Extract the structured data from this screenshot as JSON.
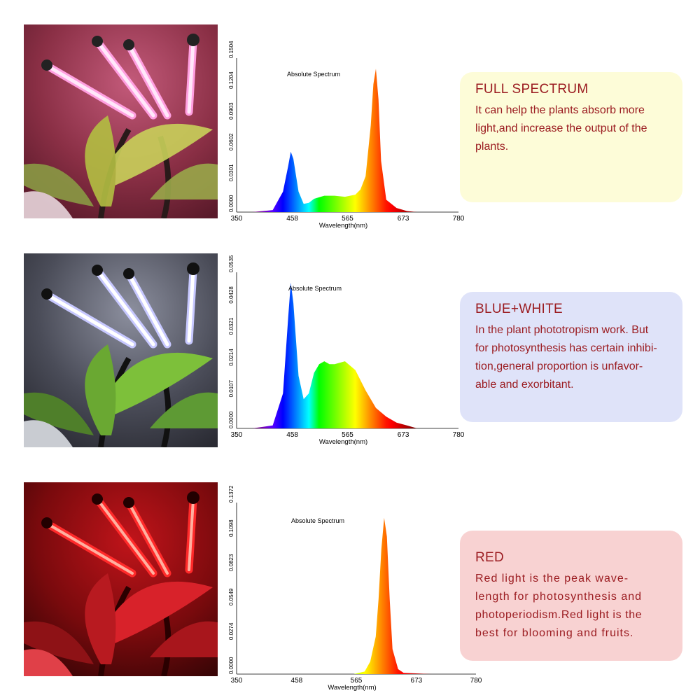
{
  "panels": [
    {
      "id": "full",
      "photo_theme": "pink",
      "card": {
        "title": "FULL SPECTRUM",
        "lines": [
          "It can help the plants absorb more",
          "light,and increase the output of the",
          "plants."
        ],
        "bg": "#fdfcd8"
      },
      "chart_data": {
        "type": "area",
        "title": "Absolute Spectrum",
        "xlabel": "Wavelength(nm)",
        "x_ticks": [
          "350",
          "458",
          "565",
          "673",
          "780"
        ],
        "xlim": [
          350,
          780
        ],
        "y_ticks": [
          "0.0000",
          "0.0301",
          "0.0602",
          "0.0903",
          "0.1204",
          "0.1504"
        ],
        "ylim": [
          0,
          0.1504
        ],
        "x": [
          380,
          420,
          440,
          450,
          455,
          460,
          470,
          480,
          490,
          500,
          520,
          540,
          560,
          580,
          590,
          600,
          610,
          615,
          620,
          625,
          630,
          640,
          660,
          680,
          700
        ],
        "y": [
          0,
          0.002,
          0.02,
          0.045,
          0.059,
          0.052,
          0.02,
          0.008,
          0.009,
          0.013,
          0.016,
          0.016,
          0.015,
          0.017,
          0.022,
          0.035,
          0.085,
          0.125,
          0.14,
          0.11,
          0.05,
          0.012,
          0.004,
          0.001,
          0
        ]
      }
    },
    {
      "id": "bluewhite",
      "photo_theme": "white",
      "card": {
        "title": "BLUE+WHITE",
        "lines": [
          "In the plant phototropism work. But",
          "for photosynthesis has certain inhibi-",
          "tion,general proportion is unfavor-",
          "able and exorbitant."
        ],
        "bg": "#dfe3f9"
      },
      "chart_data": {
        "type": "area",
        "title": "Absolute Spectrum",
        "xlabel": "Wavelength(nm)",
        "x_ticks": [
          "350",
          "458",
          "565",
          "673",
          "780"
        ],
        "xlim": [
          350,
          780
        ],
        "y_ticks": [
          "0.0000",
          "0.0107",
          "0.0214",
          "0.0321",
          "0.0428",
          "0.0535"
        ],
        "ylim": [
          0,
          0.0535
        ],
        "x": [
          380,
          420,
          440,
          450,
          455,
          460,
          470,
          480,
          490,
          500,
          510,
          520,
          530,
          540,
          560,
          580,
          600,
          620,
          640,
          660,
          680,
          700
        ],
        "y": [
          0,
          0.001,
          0.012,
          0.038,
          0.05,
          0.043,
          0.018,
          0.01,
          0.012,
          0.019,
          0.022,
          0.023,
          0.022,
          0.022,
          0.023,
          0.02,
          0.013,
          0.007,
          0.004,
          0.002,
          0.001,
          0
        ]
      }
    },
    {
      "id": "red",
      "photo_theme": "red",
      "card": {
        "title": "RED",
        "lines": [
          "Red light is the peak wave-",
          "length for photosynthesis and",
          "photoperiodism.Red light is the",
          "best for blooming and fruits."
        ],
        "bg": "#f8d2d2"
      },
      "chart_data": {
        "type": "area",
        "title": "Absolute Spectrum",
        "xlabel": "Wavelength(nm)",
        "x_ticks": [
          "350",
          "458",
          "565",
          "673",
          "780"
        ],
        "xlim": [
          350,
          780
        ],
        "y_ticks": [
          "0.0000",
          "0.0274",
          "0.0549",
          "0.0823",
          "0.1098",
          "0.1372"
        ],
        "ylim": [
          0,
          0.1372
        ],
        "x": [
          380,
          560,
          580,
          590,
          600,
          605,
          610,
          615,
          620,
          625,
          630,
          640,
          650,
          700
        ],
        "y": [
          0,
          0,
          0.002,
          0.01,
          0.03,
          0.06,
          0.1,
          0.125,
          0.11,
          0.06,
          0.02,
          0.004,
          0.001,
          0
        ]
      }
    }
  ]
}
